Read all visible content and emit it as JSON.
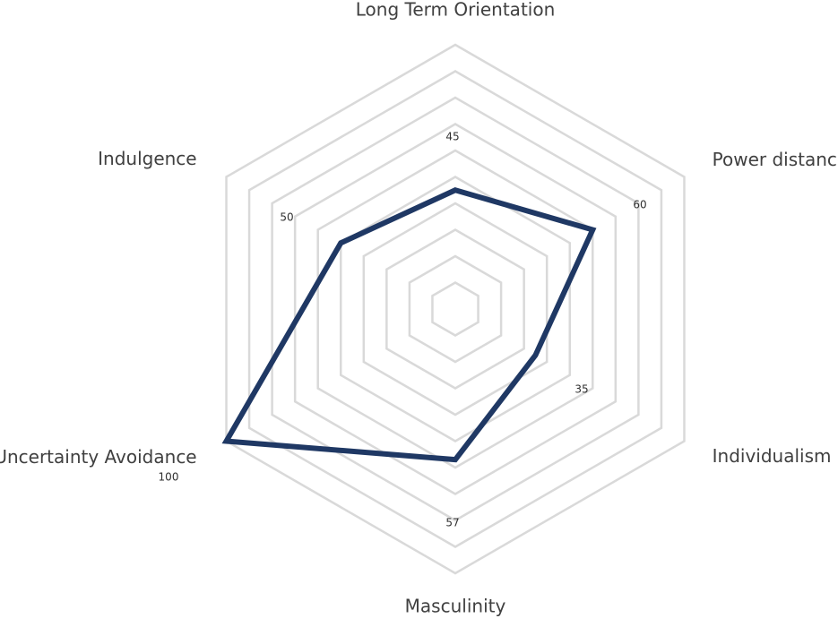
{
  "chart_data": {
    "type": "radar",
    "categories": [
      "Long Term Orientation",
      "Power distance",
      "Individualism",
      "Masculinity",
      "Uncertainty Avoidance",
      "Indulgence"
    ],
    "series": [
      {
        "color": "#1f3864",
        "values": [
          45,
          60,
          35,
          57,
          100,
          50
        ]
      }
    ],
    "ylim": [
      0,
      100
    ],
    "yticks": [
      10,
      20,
      30,
      40,
      50,
      60,
      70,
      80,
      90,
      100
    ],
    "grid": true,
    "show_tick_labels": false,
    "data_labels": true
  }
}
